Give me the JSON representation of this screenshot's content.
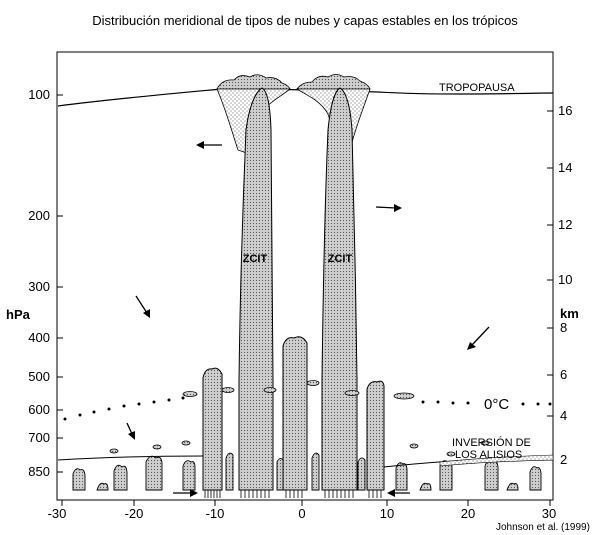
{
  "title": "Distribución meridional de tipos de nubes y capas estables en los trópicos",
  "credit": "Johnson et al. (1999)",
  "colors": {
    "cloud_fill": "#bdbdbd",
    "line": "#000000"
  },
  "chart_data": {
    "type": "diagram",
    "x_axis": {
      "ticks": [
        "-30",
        "-20",
        "-10",
        "0",
        "10",
        "20",
        "30"
      ],
      "range": [
        -30,
        30
      ]
    },
    "left_axis": {
      "label": "hPa",
      "ticks": [
        "100",
        "200",
        "300",
        "400",
        "500",
        "600",
        "700",
        "850"
      ]
    },
    "right_axis": {
      "label": "km",
      "ticks": [
        "16",
        "14",
        "12",
        "10",
        "8",
        "6",
        "4",
        "2"
      ]
    },
    "labels": {
      "tropopause": "TROPOPAUSA",
      "itcz_left": "ZCIT",
      "itcz_right": "ZCIT",
      "freezing_level": "0°C",
      "trade_inversion": [
        "INVERSIÓN DE",
        "LOS ALISIOS"
      ]
    },
    "icons": [
      "arrow-icon",
      "rain-icon",
      "cumulus-icon",
      "cumulonimbus-icon"
    ]
  }
}
